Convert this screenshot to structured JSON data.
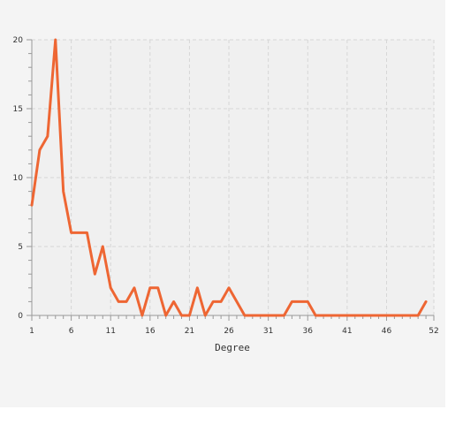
{
  "chart_data": {
    "type": "line",
    "xlabel": "Degree",
    "ylabel": "",
    "title": "",
    "xlim": [
      1,
      52
    ],
    "ylim": [
      0,
      20
    ],
    "x_ticks": [
      1,
      6,
      11,
      16,
      21,
      26,
      31,
      36,
      41,
      46,
      52
    ],
    "x_tick_labels": [
      "1",
      "6",
      "11",
      "16",
      "21",
      "26",
      "31",
      "36",
      "41",
      "46",
      "52"
    ],
    "y_ticks": [
      0,
      5,
      10,
      15,
      20
    ],
    "y_tick_labels": [
      "0",
      "5",
      "10",
      "15",
      "20"
    ],
    "grid": true,
    "line_color": "#ee6633",
    "series": [
      {
        "x": [
          1,
          2,
          3,
          4,
          5,
          6,
          7,
          8,
          9,
          10,
          11,
          12,
          13,
          14,
          15,
          16,
          17,
          18,
          19,
          20,
          21,
          22,
          23,
          24,
          25,
          26,
          27,
          28,
          29,
          30,
          31,
          32,
          33,
          34,
          35,
          36,
          37,
          38,
          39,
          40,
          41,
          42,
          43,
          44,
          45,
          46,
          47,
          48,
          49,
          50,
          51
        ],
        "values": [
          8,
          12,
          13,
          20,
          9,
          6,
          6,
          6,
          3,
          5,
          2,
          1,
          1,
          2,
          0,
          2,
          2,
          0,
          1,
          0,
          0,
          2,
          0,
          1,
          1,
          2,
          1,
          0,
          0,
          0,
          0,
          0,
          0,
          1,
          1,
          1,
          0,
          0,
          0,
          0,
          0,
          0,
          0,
          0,
          0,
          0,
          0,
          0,
          0,
          0,
          1
        ]
      }
    ]
  }
}
